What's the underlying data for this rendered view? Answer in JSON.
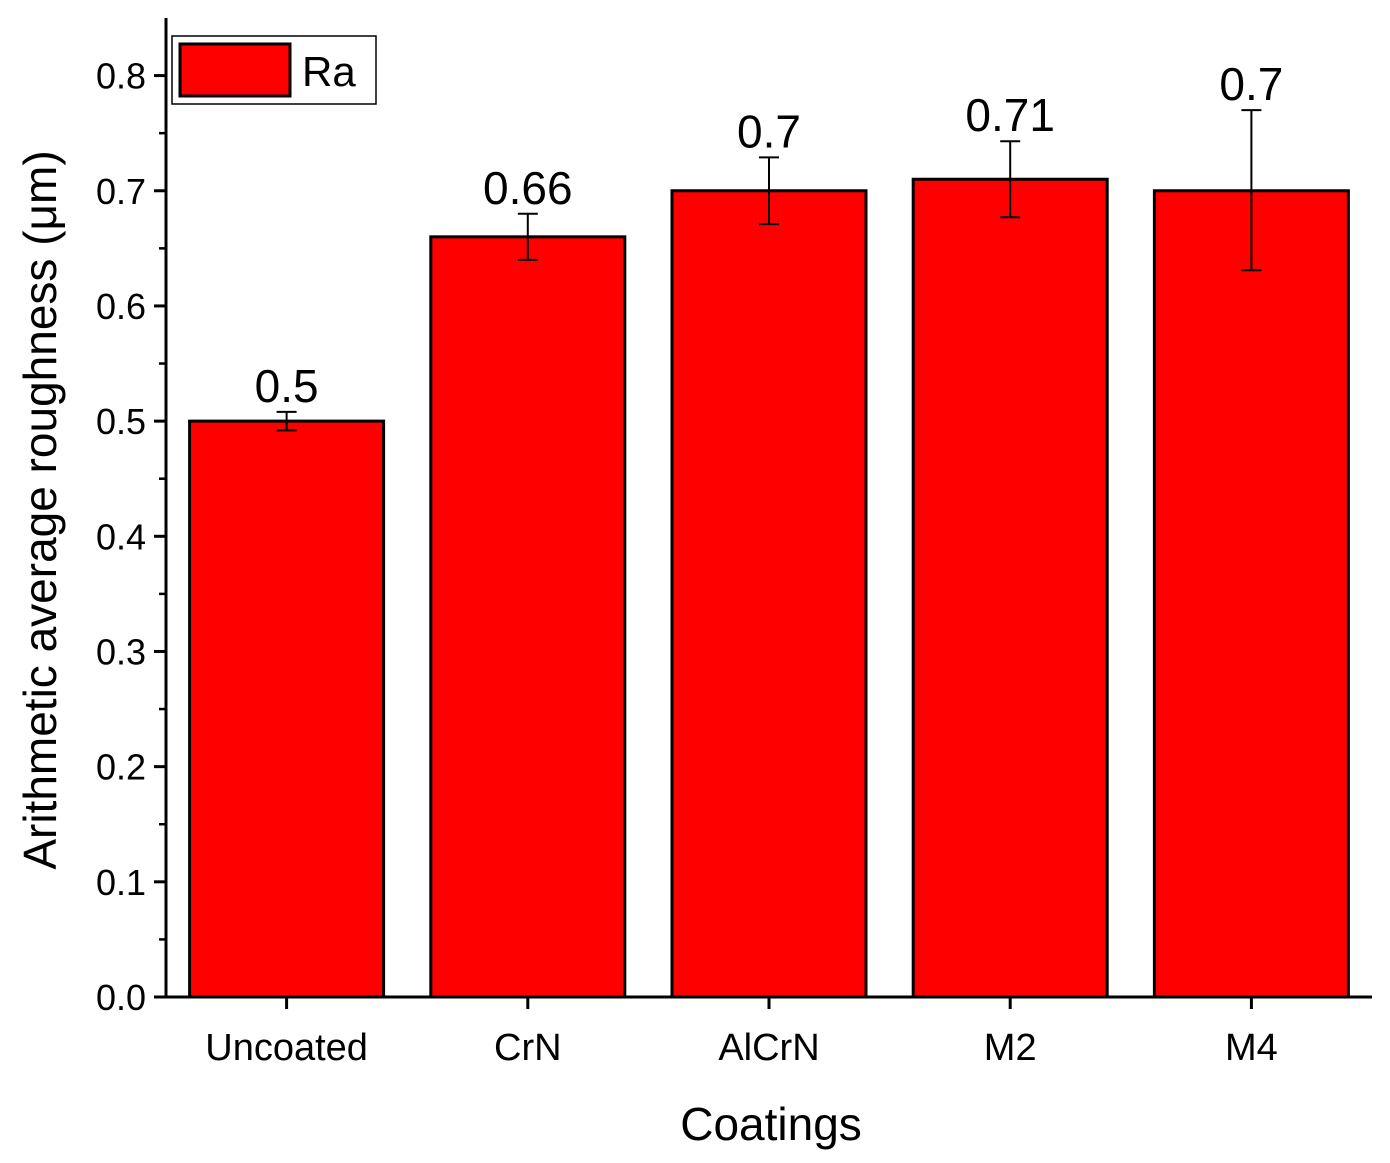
{
  "colors": {
    "bar_fill": "#ff0000",
    "bar_stroke": "#000000",
    "axis": "#000000",
    "background": "#ffffff"
  },
  "chart_data": {
    "type": "bar",
    "title": "",
    "xlabel": "Coatings",
    "ylabel": "Arithmetic  average roughness (μm)",
    "categories": [
      "Uncoated",
      "CrN",
      "AlCrN",
      "M2",
      "M4"
    ],
    "series": [
      {
        "name": "Ra",
        "values": [
          0.5,
          0.66,
          0.7,
          0.71,
          0.7
        ],
        "error_low": [
          0.492,
          0.64,
          0.671,
          0.677,
          0.631
        ],
        "error_high": [
          0.508,
          0.68,
          0.729,
          0.743,
          0.77
        ],
        "data_labels": [
          "0.5",
          "0.66",
          "0.7",
          "0.71",
          "0.7"
        ]
      }
    ],
    "ylim": [
      0,
      0.85
    ],
    "yticks": [
      0.0,
      0.1,
      0.2,
      0.3,
      0.4,
      0.5,
      0.6,
      0.7,
      0.8
    ],
    "ytick_labels": [
      "0.0",
      "0.1",
      "0.2",
      "0.3",
      "0.4",
      "0.5",
      "0.6",
      "0.7",
      "0.8"
    ],
    "grid": false,
    "legend": {
      "position": "top-left",
      "entries": [
        "Ra"
      ]
    }
  }
}
